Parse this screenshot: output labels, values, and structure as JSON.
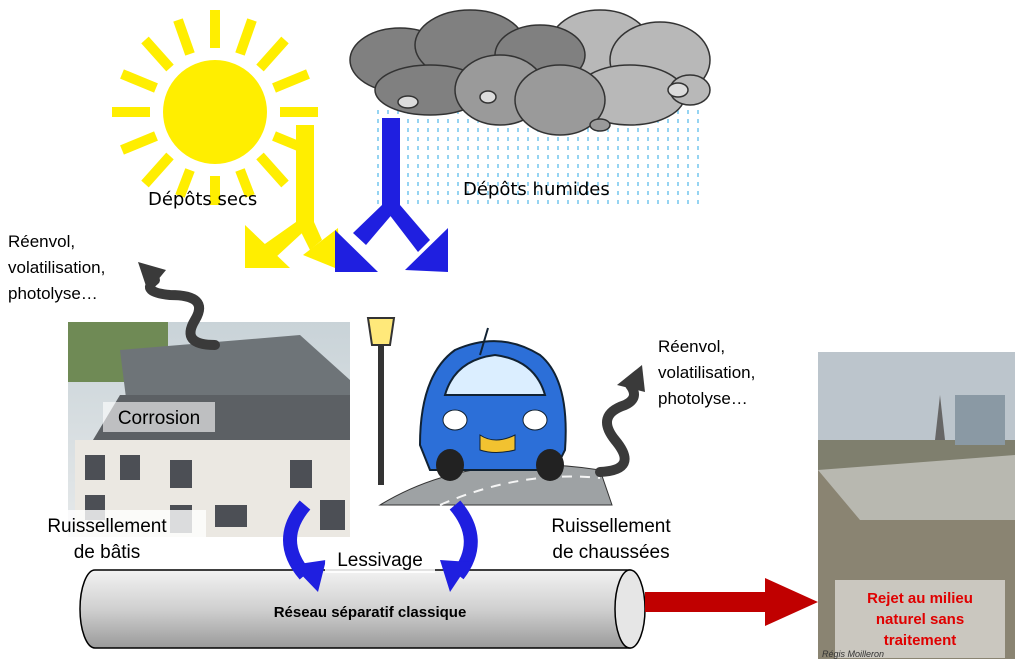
{
  "dry_deposits": "Dépôts secs",
  "wet_deposits": "Dépôts humides",
  "reenvol_left": [
    "Réenvol,",
    "volatilisation,",
    "photolyse…"
  ],
  "reenvol_right": [
    "Réenvol,",
    "volatilisation,",
    "photolyse…"
  ],
  "corrosion": "Corrosion",
  "runoff_buildings": [
    "Ruissellement",
    "de bâtis"
  ],
  "runoff_roads": [
    "Ruissellement",
    "de chaussées"
  ],
  "leaching": "Lessivage",
  "network": "Réseau séparatif classique",
  "discharge": [
    "Rejet au milieu",
    "naturel sans",
    "traitement"
  ],
  "photo_credit": "Régis Moilleron"
}
